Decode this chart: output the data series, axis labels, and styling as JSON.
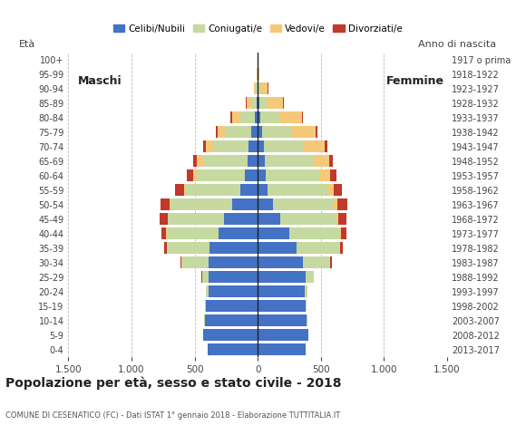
{
  "age_groups": [
    "0-4",
    "5-9",
    "10-14",
    "15-19",
    "20-24",
    "25-29",
    "30-34",
    "35-39",
    "40-44",
    "45-49",
    "50-54",
    "55-59",
    "60-64",
    "65-69",
    "70-74",
    "75-79",
    "80-84",
    "85-89",
    "90-94",
    "95-99",
    "100+"
  ],
  "birth_years": [
    "2013-2017",
    "2008-2012",
    "2003-2007",
    "1998-2002",
    "1993-1997",
    "1988-1992",
    "1983-1987",
    "1978-1982",
    "1973-1977",
    "1968-1972",
    "1963-1967",
    "1958-1962",
    "1953-1957",
    "1948-1952",
    "1943-1947",
    "1938-1942",
    "1933-1937",
    "1928-1932",
    "1923-1927",
    "1918-1922",
    "1917 o prima"
  ],
  "colors": {
    "celibe": "#4472c4",
    "coniugato": "#c5d9a0",
    "vedovo": "#f5c97a",
    "divorziato": "#c0392b"
  },
  "males": {
    "celibe": [
      400,
      430,
      420,
      410,
      390,
      390,
      390,
      380,
      310,
      270,
      200,
      140,
      100,
      80,
      70,
      50,
      25,
      10,
      5,
      2,
      2
    ],
    "coniugato": [
      0,
      0,
      5,
      5,
      20,
      50,
      210,
      340,
      410,
      440,
      490,
      430,
      380,
      350,
      280,
      200,
      110,
      40,
      10,
      2,
      0
    ],
    "vedovo": [
      0,
      0,
      0,
      0,
      0,
      2,
      2,
      2,
      5,
      5,
      10,
      15,
      30,
      50,
      60,
      70,
      70,
      40,
      15,
      2,
      0
    ],
    "divorziato": [
      0,
      0,
      0,
      0,
      2,
      5,
      10,
      20,
      40,
      60,
      70,
      70,
      50,
      30,
      20,
      15,
      10,
      5,
      2,
      0,
      0
    ]
  },
  "females": {
    "celibe": [
      380,
      400,
      390,
      380,
      370,
      380,
      360,
      310,
      250,
      180,
      120,
      80,
      60,
      55,
      50,
      35,
      20,
      10,
      5,
      2,
      2
    ],
    "coniugato": [
      0,
      0,
      5,
      5,
      20,
      60,
      210,
      340,
      400,
      440,
      480,
      470,
      430,
      380,
      310,
      240,
      150,
      60,
      15,
      2,
      0
    ],
    "vedovo": [
      0,
      0,
      0,
      0,
      2,
      2,
      5,
      5,
      10,
      15,
      30,
      50,
      80,
      130,
      170,
      180,
      180,
      130,
      60,
      10,
      5
    ],
    "divorziato": [
      0,
      0,
      0,
      0,
      2,
      5,
      10,
      20,
      40,
      70,
      80,
      70,
      50,
      30,
      20,
      15,
      10,
      5,
      2,
      0,
      0
    ]
  },
  "title": "Popolazione per età, sesso e stato civile - 2018",
  "subtitle": "COMUNE DI CESENATICO (FC) - Dati ISTAT 1° gennaio 2018 - Elaborazione TUTTITALIA.IT",
  "xlim": 1500,
  "legend_labels": [
    "Celibi/Nubili",
    "Coniugati/e",
    "Vedovi/e",
    "Divorziati/e"
  ],
  "background_color": "#ffffff",
  "grid_color": "#bbbbbb"
}
